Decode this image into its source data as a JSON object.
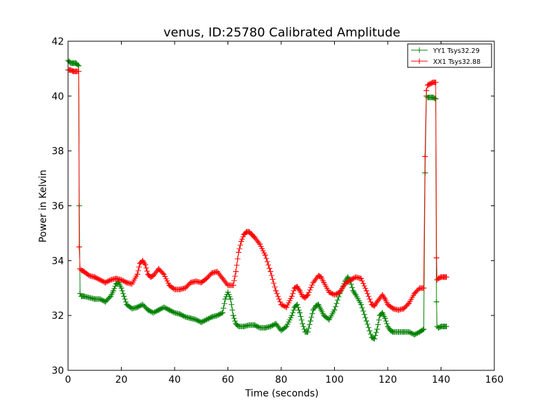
{
  "chart_data": {
    "type": "line",
    "title": "venus, ID:25780 Calibrated Amplitude",
    "xlabel": "Time (seconds)",
    "ylabel": "Power in Kelvin",
    "xlim": [
      0,
      160
    ],
    "ylim": [
      30,
      42
    ],
    "xticks": [
      0,
      20,
      40,
      60,
      80,
      100,
      120,
      140,
      160
    ],
    "yticks": [
      30,
      32,
      34,
      36,
      38,
      40,
      42
    ],
    "grid": false,
    "legend_position": "top-right",
    "series": [
      {
        "name": "YY1 Tsys32.29",
        "color": "#008000",
        "marker": "+",
        "x": [
          0,
          1,
          2,
          3,
          4,
          4.2,
          4.5,
          5,
          6,
          8,
          10,
          12,
          14,
          16,
          17,
          18,
          19,
          20,
          21,
          22,
          24,
          26,
          28,
          30,
          32,
          34,
          36,
          38,
          40,
          42,
          44,
          46,
          48,
          50,
          52,
          54,
          56,
          58,
          59,
          60,
          61,
          62,
          63,
          64,
          66,
          68,
          70,
          72,
          74,
          76,
          78,
          80,
          82,
          84,
          85,
          86,
          87,
          88,
          89,
          90,
          91,
          92,
          93,
          94,
          95,
          96,
          98,
          100,
          102,
          104,
          105,
          106,
          107,
          108,
          110,
          112,
          114,
          115,
          116,
          117,
          118,
          119,
          120,
          121,
          122,
          124,
          126,
          128,
          130,
          132,
          133.5,
          134,
          134.5,
          135,
          136,
          137,
          138,
          138.3,
          138.5,
          139,
          140,
          141,
          142
        ],
        "y": [
          41.3,
          41.2,
          41.2,
          41.2,
          41.1,
          36.0,
          32.8,
          32.7,
          32.7,
          32.65,
          32.6,
          32.6,
          32.5,
          32.7,
          32.9,
          33.15,
          33.2,
          33.0,
          32.7,
          32.4,
          32.25,
          32.3,
          32.4,
          32.2,
          32.1,
          32.2,
          32.3,
          32.2,
          32.1,
          32.05,
          31.95,
          31.9,
          31.85,
          31.75,
          31.85,
          31.95,
          32.0,
          32.1,
          32.6,
          32.85,
          32.6,
          32.0,
          31.7,
          31.6,
          31.6,
          31.65,
          31.65,
          31.55,
          31.55,
          31.6,
          31.7,
          31.45,
          31.6,
          32.0,
          32.3,
          32.4,
          32.1,
          31.7,
          31.4,
          31.4,
          31.8,
          32.2,
          32.35,
          32.4,
          32.2,
          32.0,
          31.85,
          32.2,
          32.8,
          33.25,
          33.4,
          33.25,
          32.9,
          32.75,
          32.4,
          31.8,
          31.2,
          31.15,
          31.5,
          32.0,
          32.1,
          31.9,
          31.6,
          31.45,
          31.4,
          31.4,
          31.4,
          31.4,
          31.3,
          31.4,
          31.5,
          37.2,
          40.0,
          39.95,
          39.95,
          39.95,
          39.9,
          32.5,
          31.6,
          31.55,
          31.6,
          31.6,
          31.6
        ]
      },
      {
        "name": "XX1 Tsys32.88",
        "color": "#ff0000",
        "marker": "+",
        "x": [
          0,
          1,
          2,
          3,
          4,
          4.2,
          4.5,
          5,
          6,
          8,
          10,
          12,
          14,
          16,
          18,
          20,
          22,
          24,
          26,
          27,
          28,
          29,
          30,
          31,
          32,
          34,
          36,
          38,
          40,
          42,
          44,
          46,
          48,
          50,
          52,
          54,
          56,
          58,
          60,
          62,
          63,
          64,
          65,
          66,
          67,
          68,
          69,
          70,
          72,
          74,
          76,
          78,
          80,
          82,
          84,
          85,
          86,
          87,
          88,
          89,
          90,
          92,
          94,
          95,
          96,
          98,
          100,
          102,
          104,
          106,
          108,
          110,
          112,
          114,
          115,
          116,
          118,
          119,
          120,
          122,
          124,
          126,
          128,
          130,
          132,
          133.5,
          134,
          134.5,
          135,
          136,
          137,
          138,
          138.3,
          138.5,
          139,
          140,
          141,
          142
        ],
        "y": [
          40.95,
          40.95,
          40.9,
          40.9,
          40.9,
          34.5,
          33.7,
          33.65,
          33.6,
          33.45,
          33.4,
          33.3,
          33.2,
          33.3,
          33.35,
          33.3,
          33.2,
          33.15,
          33.5,
          33.9,
          34.0,
          33.85,
          33.5,
          33.4,
          33.45,
          33.7,
          33.5,
          33.1,
          32.95,
          32.95,
          33.0,
          33.2,
          33.25,
          33.2,
          33.35,
          33.55,
          33.6,
          33.35,
          33.1,
          33.1,
          33.6,
          34.3,
          34.7,
          34.95,
          35.05,
          35.05,
          34.95,
          34.85,
          34.6,
          34.2,
          33.6,
          32.9,
          32.4,
          32.3,
          32.7,
          33.0,
          33.05,
          32.9,
          32.7,
          32.65,
          32.75,
          33.2,
          33.45,
          33.4,
          33.2,
          32.85,
          32.75,
          32.85,
          33.15,
          33.3,
          33.4,
          33.35,
          32.9,
          32.4,
          32.35,
          32.5,
          32.75,
          32.6,
          32.4,
          32.25,
          32.2,
          32.25,
          32.45,
          32.8,
          33.0,
          33.0,
          37.8,
          40.2,
          40.4,
          40.45,
          40.5,
          40.5,
          34.1,
          33.3,
          33.35,
          33.4,
          33.4,
          33.4
        ]
      }
    ]
  }
}
